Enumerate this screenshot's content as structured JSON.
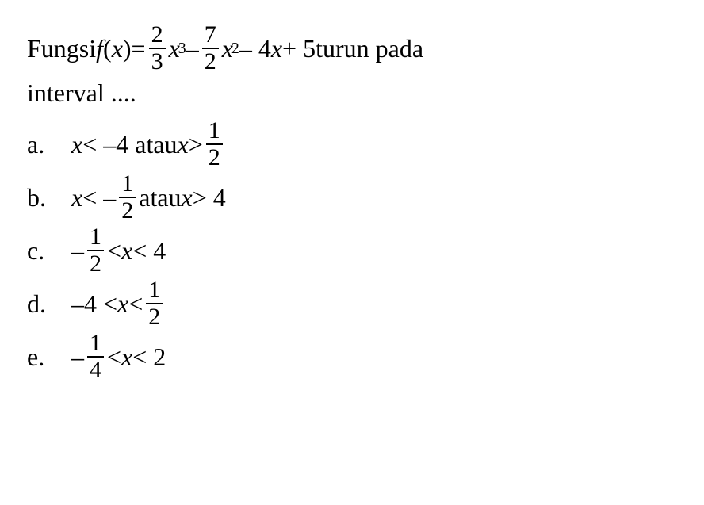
{
  "question": {
    "prefix": "Fungsi ",
    "fx_open": "f",
    "fx_paren_open": "(",
    "fx_var": "x",
    "fx_paren_close": ")",
    "eq": " = ",
    "term1_num": "2",
    "term1_den": "3",
    "term1_var": "x",
    "term1_pow": "3",
    "minus1": " – ",
    "term2_num": "7",
    "term2_den": "2",
    "term2_var": "x",
    "term2_pow": "2",
    "minus2": " – 4",
    "term3_var": "x",
    "plus": " + 5 ",
    "trail": "turun pada",
    "line2": "interval ...."
  },
  "opts": {
    "a": {
      "letter": "a.",
      "p1": "x",
      "p2": " < –4 atau ",
      "p3": "x",
      "p4": " > ",
      "fr_num": "1",
      "fr_den": "2"
    },
    "b": {
      "letter": "b.",
      "p1": "x",
      "p2": " < – ",
      "fr1_num": "1",
      "fr1_den": "2",
      "p3": " atau ",
      "p4": "x",
      "p5": " > 4"
    },
    "c": {
      "letter": "c.",
      "p1": "– ",
      "fr_num": "1",
      "fr_den": "2",
      "p2": " < ",
      "p3": "x",
      "p4": " < 4"
    },
    "d": {
      "letter": "d.",
      "p1": "–4 < ",
      "p2": "x",
      "p3": " < ",
      "fr_num": "1",
      "fr_den": "2"
    },
    "e": {
      "letter": "e.",
      "p1": "– ",
      "fr_num": "1",
      "fr_den": "4",
      "p2": " < ",
      "p3": "x",
      "p4": " < 2"
    }
  }
}
